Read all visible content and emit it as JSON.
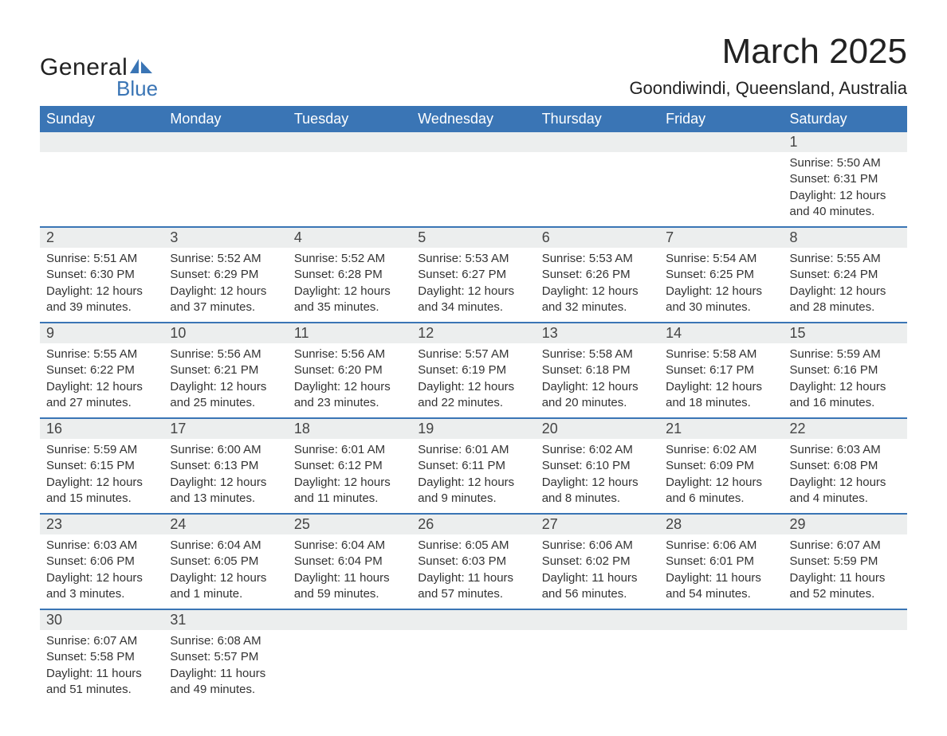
{
  "logo": {
    "line1": "General",
    "line2": "Blue",
    "icon_color": "#3a75b5"
  },
  "title": "March 2025",
  "location": "Goondiwindi, Queensland, Australia",
  "colors": {
    "header_bg": "#3a75b5",
    "header_text": "#ffffff",
    "daynum_bg": "#eceeee",
    "row_border": "#3a75b5",
    "text": "#333333"
  },
  "font": {
    "family": "Arial",
    "th_size_pt": 14,
    "body_size_pt": 11,
    "title_size_pt": 33,
    "location_size_pt": 16
  },
  "weekdays": [
    "Sunday",
    "Monday",
    "Tuesday",
    "Wednesday",
    "Thursday",
    "Friday",
    "Saturday"
  ],
  "weeks": [
    [
      null,
      null,
      null,
      null,
      null,
      null,
      {
        "n": 1,
        "sr": "5:50 AM",
        "ss": "6:31 PM",
        "dl": "12 hours and 40 minutes."
      }
    ],
    [
      {
        "n": 2,
        "sr": "5:51 AM",
        "ss": "6:30 PM",
        "dl": "12 hours and 39 minutes."
      },
      {
        "n": 3,
        "sr": "5:52 AM",
        "ss": "6:29 PM",
        "dl": "12 hours and 37 minutes."
      },
      {
        "n": 4,
        "sr": "5:52 AM",
        "ss": "6:28 PM",
        "dl": "12 hours and 35 minutes."
      },
      {
        "n": 5,
        "sr": "5:53 AM",
        "ss": "6:27 PM",
        "dl": "12 hours and 34 minutes."
      },
      {
        "n": 6,
        "sr": "5:53 AM",
        "ss": "6:26 PM",
        "dl": "12 hours and 32 minutes."
      },
      {
        "n": 7,
        "sr": "5:54 AM",
        "ss": "6:25 PM",
        "dl": "12 hours and 30 minutes."
      },
      {
        "n": 8,
        "sr": "5:55 AM",
        "ss": "6:24 PM",
        "dl": "12 hours and 28 minutes."
      }
    ],
    [
      {
        "n": 9,
        "sr": "5:55 AM",
        "ss": "6:22 PM",
        "dl": "12 hours and 27 minutes."
      },
      {
        "n": 10,
        "sr": "5:56 AM",
        "ss": "6:21 PM",
        "dl": "12 hours and 25 minutes."
      },
      {
        "n": 11,
        "sr": "5:56 AM",
        "ss": "6:20 PM",
        "dl": "12 hours and 23 minutes."
      },
      {
        "n": 12,
        "sr": "5:57 AM",
        "ss": "6:19 PM",
        "dl": "12 hours and 22 minutes."
      },
      {
        "n": 13,
        "sr": "5:58 AM",
        "ss": "6:18 PM",
        "dl": "12 hours and 20 minutes."
      },
      {
        "n": 14,
        "sr": "5:58 AM",
        "ss": "6:17 PM",
        "dl": "12 hours and 18 minutes."
      },
      {
        "n": 15,
        "sr": "5:59 AM",
        "ss": "6:16 PM",
        "dl": "12 hours and 16 minutes."
      }
    ],
    [
      {
        "n": 16,
        "sr": "5:59 AM",
        "ss": "6:15 PM",
        "dl": "12 hours and 15 minutes."
      },
      {
        "n": 17,
        "sr": "6:00 AM",
        "ss": "6:13 PM",
        "dl": "12 hours and 13 minutes."
      },
      {
        "n": 18,
        "sr": "6:01 AM",
        "ss": "6:12 PM",
        "dl": "12 hours and 11 minutes."
      },
      {
        "n": 19,
        "sr": "6:01 AM",
        "ss": "6:11 PM",
        "dl": "12 hours and 9 minutes."
      },
      {
        "n": 20,
        "sr": "6:02 AM",
        "ss": "6:10 PM",
        "dl": "12 hours and 8 minutes."
      },
      {
        "n": 21,
        "sr": "6:02 AM",
        "ss": "6:09 PM",
        "dl": "12 hours and 6 minutes."
      },
      {
        "n": 22,
        "sr": "6:03 AM",
        "ss": "6:08 PM",
        "dl": "12 hours and 4 minutes."
      }
    ],
    [
      {
        "n": 23,
        "sr": "6:03 AM",
        "ss": "6:06 PM",
        "dl": "12 hours and 3 minutes."
      },
      {
        "n": 24,
        "sr": "6:04 AM",
        "ss": "6:05 PM",
        "dl": "12 hours and 1 minute."
      },
      {
        "n": 25,
        "sr": "6:04 AM",
        "ss": "6:04 PM",
        "dl": "11 hours and 59 minutes."
      },
      {
        "n": 26,
        "sr": "6:05 AM",
        "ss": "6:03 PM",
        "dl": "11 hours and 57 minutes."
      },
      {
        "n": 27,
        "sr": "6:06 AM",
        "ss": "6:02 PM",
        "dl": "11 hours and 56 minutes."
      },
      {
        "n": 28,
        "sr": "6:06 AM",
        "ss": "6:01 PM",
        "dl": "11 hours and 54 minutes."
      },
      {
        "n": 29,
        "sr": "6:07 AM",
        "ss": "5:59 PM",
        "dl": "11 hours and 52 minutes."
      }
    ],
    [
      {
        "n": 30,
        "sr": "6:07 AM",
        "ss": "5:58 PM",
        "dl": "11 hours and 51 minutes."
      },
      {
        "n": 31,
        "sr": "6:08 AM",
        "ss": "5:57 PM",
        "dl": "11 hours and 49 minutes."
      },
      null,
      null,
      null,
      null,
      null
    ]
  ],
  "labels": {
    "sunrise": "Sunrise:",
    "sunset": "Sunset:",
    "daylight": "Daylight:"
  }
}
